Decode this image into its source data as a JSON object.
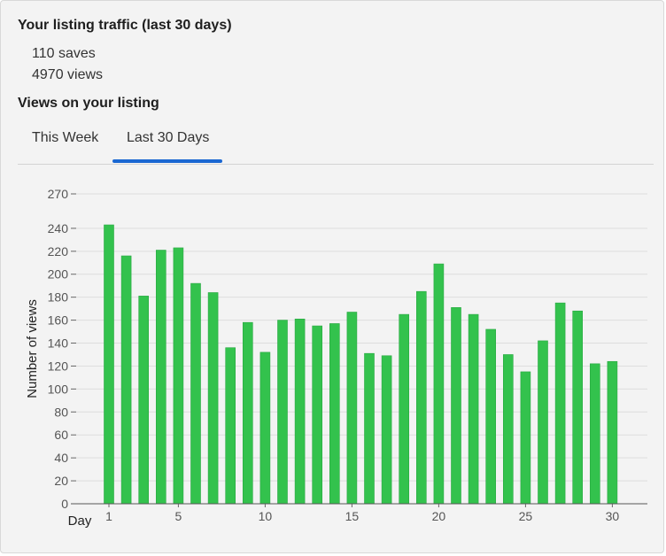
{
  "traffic": {
    "title": "Your listing traffic (last 30 days)",
    "saves": "110 saves",
    "views": "4970 views"
  },
  "views_section": {
    "title": "Views on your listing",
    "tabs": [
      {
        "label": "This Week",
        "active": false
      },
      {
        "label": "Last 30 Days",
        "active": true
      }
    ]
  },
  "colors": {
    "bar": "#33c24d",
    "bar_stroke": "#2aa843",
    "grid": "#dddddd",
    "tab_active": "#1a67d2"
  },
  "chart_data": {
    "type": "bar",
    "xlabel": "Day",
    "ylabel": "Number of views",
    "x": [
      1,
      2,
      3,
      4,
      5,
      6,
      7,
      8,
      9,
      10,
      11,
      12,
      13,
      14,
      15,
      16,
      17,
      18,
      19,
      20,
      21,
      22,
      23,
      24,
      25,
      26,
      27,
      28,
      29,
      30
    ],
    "values": [
      243,
      216,
      181,
      221,
      223,
      192,
      184,
      136,
      158,
      132,
      160,
      161,
      155,
      157,
      167,
      131,
      129,
      165,
      185,
      209,
      171,
      165,
      152,
      130,
      115,
      142,
      175,
      168,
      122,
      124
    ],
    "x_ticks": [
      1,
      5,
      10,
      15,
      20,
      25,
      30
    ],
    "y_ticks": [
      0,
      20,
      40,
      60,
      80,
      100,
      120,
      140,
      160,
      180,
      200,
      220,
      240,
      270
    ],
    "y_tick_labels": [
      "0",
      "20",
      "40",
      "60",
      "80",
      "100",
      "120",
      "140",
      "160",
      "180",
      "200",
      "220",
      "240",
      "270"
    ],
    "ylim": [
      0,
      270
    ],
    "grid": true,
    "legend": false
  }
}
